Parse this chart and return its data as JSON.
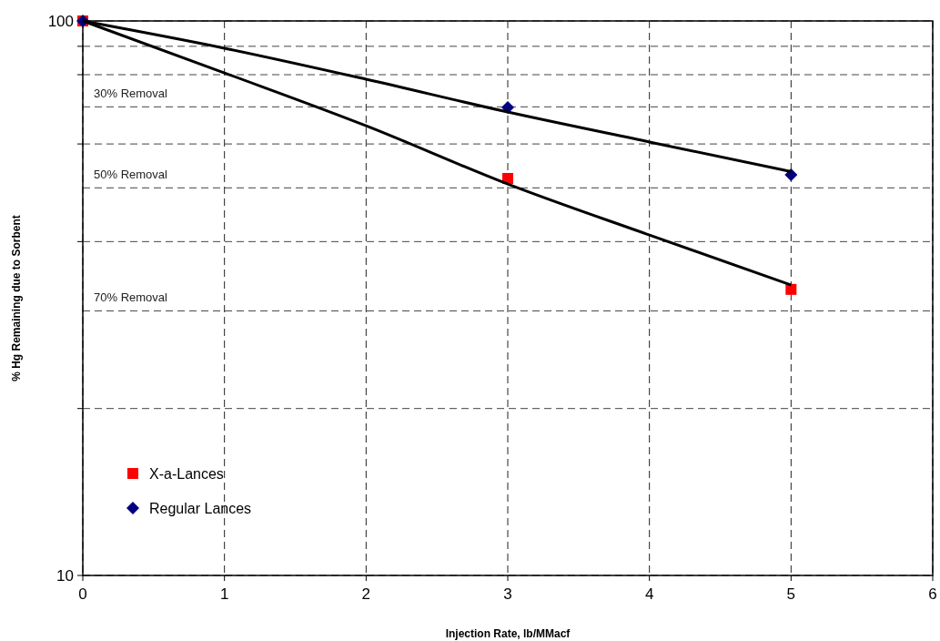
{
  "chart_data": {
    "type": "scatter",
    "xlabel": "Injection Rate, lb/MMacf",
    "ylabel": "% Hg Remaining due to Sorbent",
    "log": "y",
    "xlim": [
      0,
      6
    ],
    "xticks": [
      0,
      1,
      2,
      3,
      4,
      5,
      6
    ],
    "ylim": [
      10,
      100
    ],
    "yticks": [
      10,
      {
        "value": 20,
        "label": null
      },
      {
        "value": 40,
        "label": null
      },
      {
        "value": 60,
        "label": null
      },
      {
        "value": 80,
        "label": null
      },
      {
        "value": 90,
        "label": null
      },
      100
    ],
    "grid": true,
    "legend": "bottom left",
    "x": [
      0,
      3,
      5
    ],
    "series": [
      {
        "name": "X-a-Lances",
        "color": "#ff0000",
        "marker": "square",
        "values": [
          100,
          52,
          32.8
        ]
      },
      {
        "name": "Regular Lances",
        "color": "#000080",
        "marker": "diamond",
        "values": [
          100,
          69.8,
          52.8
        ]
      },
      {
        "type": "line",
        "color": "#000000",
        "marker": "none",
        "x": [
          0,
          1,
          2,
          3,
          4,
          5
        ],
        "values": [
          100,
          80.6,
          64.7,
          50.8,
          41.1,
          33.4
        ]
      },
      {
        "type": "line",
        "color": "#000000",
        "marker": "none",
        "x": [
          0,
          1,
          2,
          3,
          4,
          5
        ],
        "values": [
          100,
          89.3,
          78.5,
          68.5,
          60.5,
          53.5
        ]
      }
    ],
    "ref_lines": [
      {
        "axis": "y",
        "value": 70,
        "label": "30% Removal",
        "line_style": "dashed"
      },
      {
        "axis": "y",
        "value": 50,
        "label": "50% Removal",
        "line_style": "dashed"
      },
      {
        "axis": "y",
        "value": 30,
        "label": "70% Removal",
        "line_style": "dashed"
      }
    ]
  }
}
